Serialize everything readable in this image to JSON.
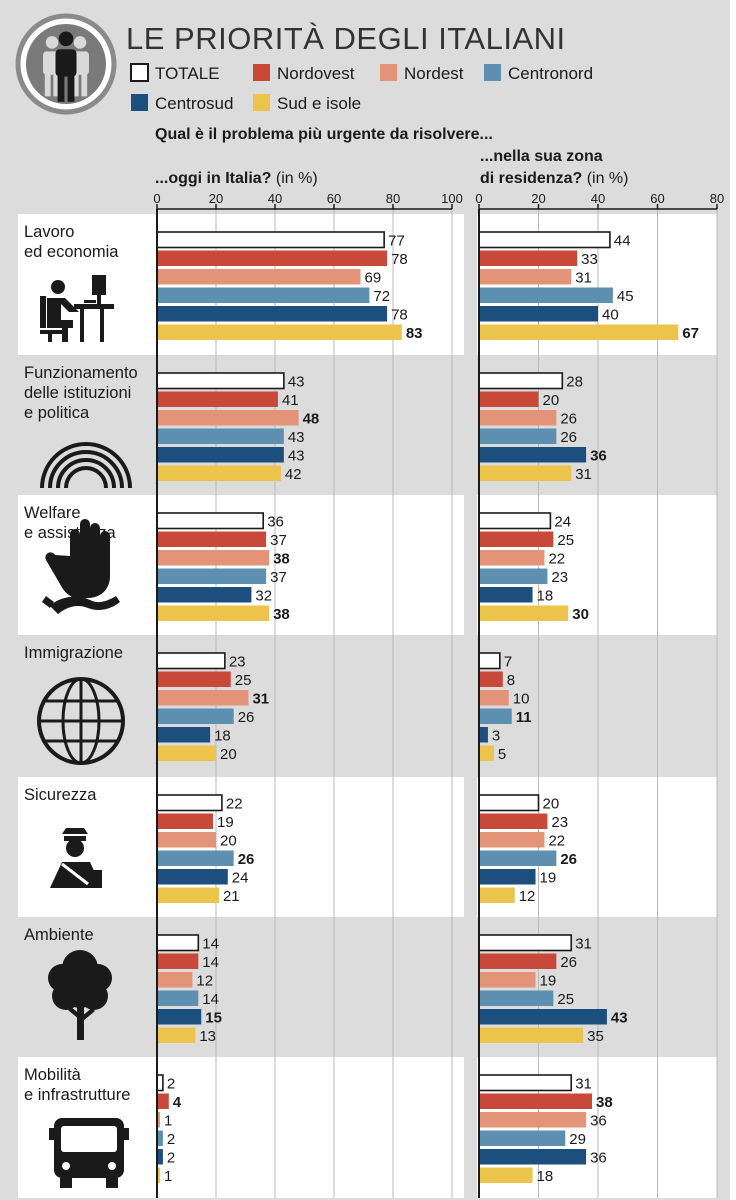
{
  "title": "LE PRIORITÀ DEGLI ITALIANI",
  "colors": {
    "TOTALE": "#ffffff",
    "Nordovest": "#c8493a",
    "Nordest": "#e39378",
    "Centronord": "#5c8fb0",
    "Centrosud": "#1d4f7e",
    "Sud e isole": "#ecc34b",
    "background": "#dcdcdc",
    "panel_light": "#ffffff"
  },
  "question": "Qual è il problema più urgente da risolvere...",
  "panels": {
    "left": {
      "title_bold": "...oggi in Italia?",
      "title_unit": "(in %)"
    },
    "right": {
      "title_bold_line1": "...nella sua zona",
      "title_bold_line2": "di residenza?",
      "title_unit": "(in %)"
    }
  },
  "categories_label_lines": [
    [
      "Lavoro",
      "ed economia"
    ],
    [
      "Funzionamento",
      "delle istituzioni",
      "e politica"
    ],
    [
      "Welfare",
      "e assistenza"
    ],
    [
      "Immigrazione"
    ],
    [
      "Sicurezza"
    ],
    [
      "Ambiente"
    ],
    [
      "Mobilità",
      "e infrastrutture"
    ]
  ],
  "category_icons": [
    "office-worker-icon",
    "parliament-icon",
    "helping-hand-icon",
    "globe-icon",
    "police-officer-icon",
    "tree-icon",
    "bus-icon"
  ],
  "chart_data": [
    {
      "type": "bar",
      "orientation": "horizontal",
      "title": "...oggi in Italia? (in %)",
      "categories": [
        "Lavoro ed economia",
        "Funzionamento delle istituzioni e politica",
        "Welfare e assistenza",
        "Immigrazione",
        "Sicurezza",
        "Ambiente",
        "Mobilità e infrastrutture"
      ],
      "xlim": [
        0,
        100
      ],
      "xticks": [
        0,
        20,
        40,
        60,
        80,
        100
      ],
      "legend_position": "top",
      "grid": true,
      "series": [
        {
          "name": "TOTALE",
          "values": [
            77,
            43,
            36,
            23,
            22,
            14,
            2
          ]
        },
        {
          "name": "Nordovest",
          "values": [
            78,
            41,
            37,
            25,
            19,
            14,
            4
          ]
        },
        {
          "name": "Nordest",
          "values": [
            69,
            48,
            38,
            31,
            20,
            12,
            1
          ]
        },
        {
          "name": "Centronord",
          "values": [
            72,
            43,
            37,
            26,
            26,
            14,
            2
          ]
        },
        {
          "name": "Centrosud",
          "values": [
            78,
            43,
            32,
            18,
            24,
            15,
            2
          ]
        },
        {
          "name": "Sud e isole",
          "values": [
            83,
            42,
            38,
            20,
            21,
            13,
            1
          ]
        }
      ]
    },
    {
      "type": "bar",
      "orientation": "horizontal",
      "title": "...nella sua zona di residenza? (in %)",
      "categories": [
        "Lavoro ed economia",
        "Funzionamento delle istituzioni e politica",
        "Welfare e assistenza",
        "Immigrazione",
        "Sicurezza",
        "Ambiente",
        "Mobilità e infrastrutture"
      ],
      "xlim": [
        0,
        80
      ],
      "xticks": [
        0,
        20,
        40,
        60,
        80
      ],
      "legend_position": "top",
      "grid": true,
      "series": [
        {
          "name": "TOTALE",
          "values": [
            44,
            28,
            24,
            7,
            20,
            31,
            31
          ]
        },
        {
          "name": "Nordovest",
          "values": [
            33,
            20,
            25,
            8,
            23,
            26,
            38
          ]
        },
        {
          "name": "Nordest",
          "values": [
            31,
            26,
            22,
            10,
            22,
            19,
            36
          ]
        },
        {
          "name": "Centronord",
          "values": [
            45,
            26,
            23,
            11,
            26,
            25,
            29
          ]
        },
        {
          "name": "Centrosud",
          "values": [
            40,
            36,
            18,
            3,
            19,
            43,
            36
          ]
        },
        {
          "name": "Sud e isole",
          "values": [
            67,
            31,
            30,
            5,
            12,
            35,
            18
          ]
        }
      ]
    }
  ]
}
